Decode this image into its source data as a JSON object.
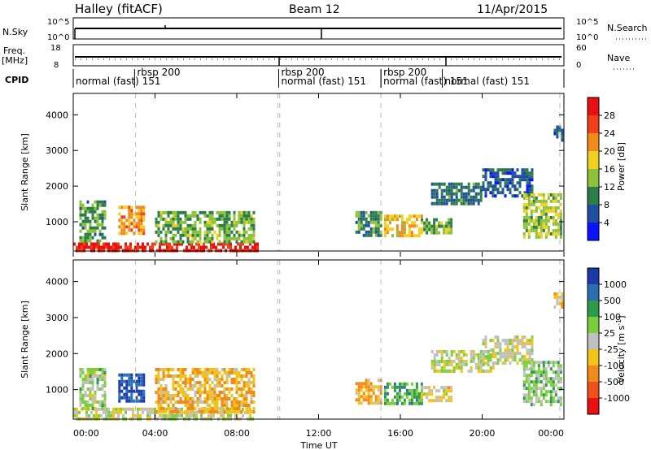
{
  "header": {
    "station": "Halley (fitACF)",
    "beam": "Beam 12",
    "date": "11/Apr/2015"
  },
  "top_panels": {
    "nsky_label": "N.Sky",
    "nsky_ticks": [
      "10^5",
      "10^0"
    ],
    "nsearch_label": "N.Search",
    "nsearch_ticks": [
      "10^5",
      "10^0"
    ],
    "freq_label_1": "Freq.",
    "freq_label_2": "[MHz]",
    "freq_ticks": [
      "18",
      "8"
    ],
    "nave_label": "Nave",
    "nave_ticks": [
      "60",
      "0"
    ],
    "cpid_label": "CPID"
  },
  "cpid_segments": [
    {
      "start_hr": 0.0,
      "end_hr": 3.0,
      "row": "bottom",
      "text": "normal (fast)  151"
    },
    {
      "start_hr": 3.0,
      "end_hr": 10.05,
      "row": "top",
      "text": "rbsp 200"
    },
    {
      "start_hr": 10.05,
      "end_hr": 15.05,
      "row": "top",
      "text": "rbsp 200"
    },
    {
      "start_hr": 10.05,
      "end_hr": 15.05,
      "row": "bottom",
      "text": "normal (fast)  151"
    },
    {
      "start_hr": 15.05,
      "end_hr": 18.05,
      "row": "top",
      "text": "rbsp 200"
    },
    {
      "start_hr": 15.05,
      "end_hr": 18.05,
      "row": "bottom",
      "text": "normal (fast)  151"
    },
    {
      "start_hr": 18.05,
      "end_hr": 23.8,
      "row": "bottom",
      "text": "normal (fast)  151"
    }
  ],
  "axes": {
    "xlabel": "Time UT",
    "xticks": [
      "00:00",
      "04:00",
      "08:00",
      "12:00",
      "16:00",
      "20:00",
      "00:00"
    ],
    "ylabel": "Slant Range [km]",
    "yticks": [
      "1000",
      "2000",
      "3000",
      "4000"
    ]
  },
  "colorbars": {
    "power": {
      "label": "Power [dB]",
      "ticks": [
        "4",
        "8",
        "12",
        "16",
        "20",
        "24",
        "28"
      ],
      "colors": [
        "#0a14ff",
        "#1f4fa0",
        "#2d7d4a",
        "#8cc23a",
        "#f2d020",
        "#f08a1a",
        "#f04018",
        "#e81010"
      ]
    },
    "velocity": {
      "label": "Velocity [m s",
      "label_sup": "-1",
      "label_end": "]",
      "ticks": [
        "1000",
        "500",
        "100",
        "25",
        "-25",
        "-100",
        "-500",
        "-1000"
      ],
      "colors": [
        "#1a3aa8",
        "#2b6fb3",
        "#2f9a4a",
        "#7ad03a",
        "#c0c0c0",
        "#f2c418",
        "#f08a1a",
        "#f0501a",
        "#e81010"
      ]
    }
  },
  "chart_data": {
    "type": "heatmap",
    "title": "Halley (fitACF)   Beam 12   11/Apr/2015",
    "xlabel": "Time UT",
    "ylabel": "Slant Range [km]",
    "xlim_hours": [
      0,
      24
    ],
    "ylim_km": [
      180,
      4600
    ],
    "panels": [
      {
        "name": "Power [dB]",
        "clim": [
          0,
          30
        ],
        "regions": [
          {
            "t0": 0.0,
            "t1": 9.0,
            "r0": 200,
            "r1": 420,
            "value": 27
          },
          {
            "t0": 0.3,
            "t1": 1.5,
            "r0": 450,
            "r1": 1600,
            "value": 10
          },
          {
            "t0": 2.2,
            "t1": 3.5,
            "r0": 650,
            "r1": 1450,
            "value": 20
          },
          {
            "t0": 4.0,
            "t1": 8.8,
            "r0": 400,
            "r1": 1300,
            "value": 12
          },
          {
            "t0": 13.8,
            "t1": 15.0,
            "r0": 600,
            "r1": 1300,
            "value": 10
          },
          {
            "t0": 15.2,
            "t1": 17.0,
            "r0": 650,
            "r1": 1200,
            "value": 18
          },
          {
            "t0": 17.0,
            "t1": 18.5,
            "r0": 700,
            "r1": 1100,
            "value": 12
          },
          {
            "t0": 17.5,
            "t1": 20.0,
            "r0": 1500,
            "r1": 2100,
            "value": 8
          },
          {
            "t0": 20.0,
            "t1": 22.5,
            "r0": 1700,
            "r1": 2500,
            "value": 6
          },
          {
            "t0": 22.0,
            "t1": 23.9,
            "r0": 600,
            "r1": 1800,
            "value": 14
          },
          {
            "t0": 23.5,
            "t1": 23.9,
            "r0": 3300,
            "r1": 3700,
            "value": 6
          }
        ]
      },
      {
        "name": "Velocity [m s-1]",
        "clim": [
          -1000,
          1000
        ],
        "regions": [
          {
            "t0": 0.0,
            "t1": 8.8,
            "r0": 200,
            "r1": 500,
            "value": 25
          },
          {
            "t0": 0.3,
            "t1": 1.5,
            "r0": 500,
            "r1": 1600,
            "value": 100
          },
          {
            "t0": 2.2,
            "t1": 3.5,
            "r0": 650,
            "r1": 1450,
            "value": 800
          },
          {
            "t0": 4.0,
            "t1": 8.8,
            "r0": 400,
            "r1": 1600,
            "value": -300
          },
          {
            "t0": 13.8,
            "t1": 15.0,
            "r0": 600,
            "r1": 1300,
            "value": -300
          },
          {
            "t0": 15.2,
            "t1": 17.0,
            "r0": 650,
            "r1": 1200,
            "value": 400
          },
          {
            "t0": 17.0,
            "t1": 18.5,
            "r0": 700,
            "r1": 1100,
            "value": -100
          },
          {
            "t0": 17.5,
            "t1": 20.5,
            "r0": 1500,
            "r1": 2100,
            "value": 0
          },
          {
            "t0": 20.0,
            "t1": 22.5,
            "r0": 1700,
            "r1": 2500,
            "value": 0
          },
          {
            "t0": 22.0,
            "t1": 23.9,
            "r0": 600,
            "r1": 1800,
            "value": 200
          },
          {
            "t0": 23.5,
            "t1": 23.9,
            "r0": 3300,
            "r1": 3700,
            "value": -200
          }
        ]
      }
    ]
  }
}
